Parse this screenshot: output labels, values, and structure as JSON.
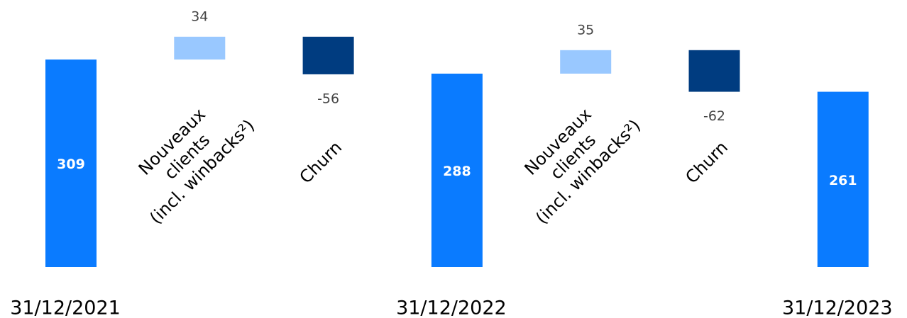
{
  "chart_data": {
    "type": "waterfall",
    "categories": [
      "31/12/2021",
      "Nouveaux\nclients\n(incl. winbacks²)",
      "Churn",
      "31/12/2022",
      "Nouveaux\nclients\n(incl. winbacks²)",
      "Churn",
      "31/12/2023"
    ],
    "values": [
      309,
      34,
      -56,
      288,
      35,
      -62,
      261
    ],
    "measure": [
      "total",
      "relative",
      "relative",
      "total",
      "relative",
      "relative",
      "total"
    ],
    "colors": {
      "total": "#0a7bff",
      "increase": "#99c8ff",
      "decrease": "#003c80"
    }
  }
}
